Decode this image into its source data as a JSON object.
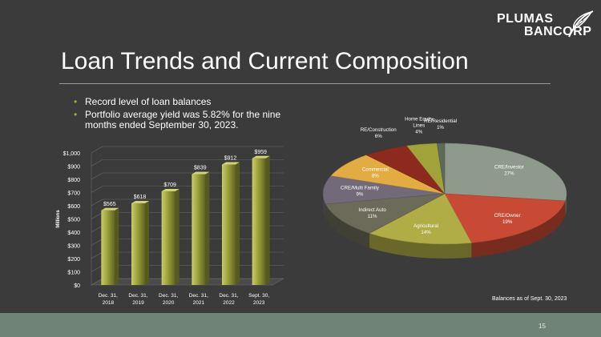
{
  "logo": {
    "line1": "PLUMAS",
    "line2": "BANCORP"
  },
  "title": "Loan Trends and Current Composition",
  "bullets": [
    "Record level of loan balances",
    "Portfolio average yield was 5.82% for the nine months ended September 30, 2023."
  ],
  "note": "Balances as of Sept. 30, 2023",
  "page_number": "15",
  "colors": {
    "bar": "#8f9630",
    "background": "#3b3b3b",
    "footer": "#6f8477"
  },
  "chart_data": [
    {
      "type": "bar",
      "categories": [
        "Dec. 31, 2018",
        "Dec. 31, 2019",
        "Dec. 31, 2020",
        "Dec. 31, 2021",
        "Dec. 31, 2022",
        "Sept. 30, 2023"
      ],
      "category_lines": [
        [
          "Dec. 31,",
          "2018"
        ],
        [
          "Dec. 31,",
          "2019"
        ],
        [
          "Dec. 31,",
          "2020"
        ],
        [
          "Dec. 31,",
          "2021"
        ],
        [
          "Dec. 31,",
          "2022"
        ],
        [
          "Sept. 30,",
          "2023"
        ]
      ],
      "values": [
        565,
        618,
        709,
        839,
        912,
        959
      ],
      "value_labels": [
        "$565",
        "$618",
        "$709",
        "$839",
        "$912",
        "$959"
      ],
      "ylabel": "Millions",
      "ylim": [
        0,
        1000
      ],
      "yticks": [
        0,
        100,
        200,
        300,
        400,
        500,
        600,
        700,
        800,
        900,
        1000
      ],
      "ytick_labels": [
        "$0",
        "$100",
        "$200",
        "$300",
        "$400",
        "$500",
        "$600",
        "$700",
        "$800",
        "$900",
        "$1,000"
      ],
      "grid": true
    },
    {
      "type": "pie",
      "slices": [
        {
          "label": "CRE/Investor",
          "pct_label": "27%",
          "value": 27,
          "color": "#8e9a8c"
        },
        {
          "label": "CRE/Owner",
          "pct_label": "19%",
          "value": 19,
          "color": "#c84a34"
        },
        {
          "label": "Agricultural",
          "pct_label": "14%",
          "value": 14,
          "color": "#b0ac46"
        },
        {
          "label": "Indirect Auto",
          "pct_label": "11%",
          "value": 11,
          "color": "#6c6a58"
        },
        {
          "label": "CRE/Multi Family",
          "pct_label": "9%",
          "value": 9,
          "color": "#726a78"
        },
        {
          "label": "Commercial",
          "pct_label": "8%",
          "value": 8,
          "color": "#e2ac42"
        },
        {
          "label": "RE/Construction",
          "pct_label": "6%",
          "value": 6,
          "color": "#8c2a1e"
        },
        {
          "label": "Home Equity Lines",
          "label_lines": [
            "Home Equity",
            "Lines"
          ],
          "pct_label": "4%",
          "value": 4,
          "color": "#a2a23a"
        },
        {
          "label": "RE/Residential",
          "pct_label": "1%",
          "value": 1,
          "color": "#5e6a58"
        }
      ]
    }
  ]
}
